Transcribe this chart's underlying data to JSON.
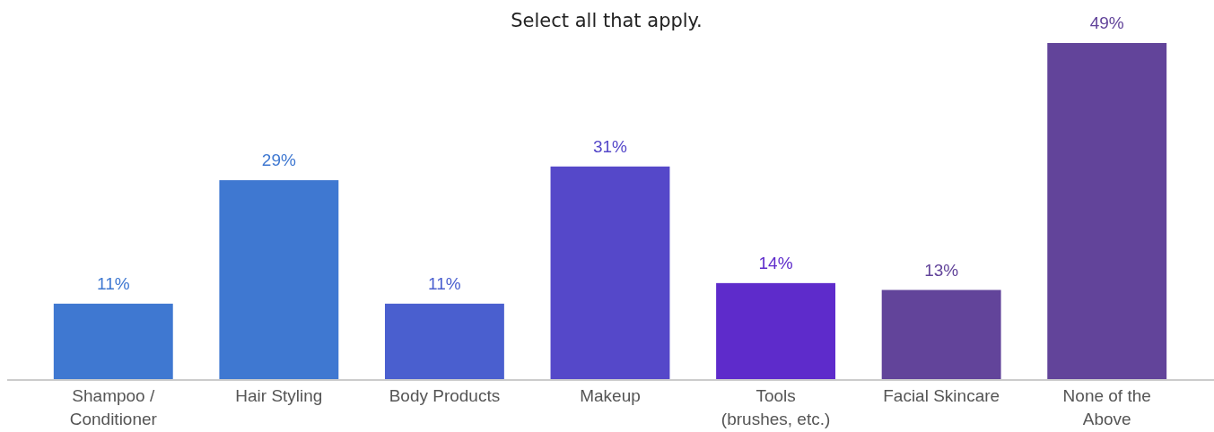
{
  "chart_data": {
    "type": "bar",
    "title": "Select all that apply.",
    "categories": [
      "Shampoo / Conditioner",
      "Hair Styling",
      "Body Products",
      "Makeup",
      "Tools (brushes, etc.)",
      "Facial Skincare",
      "None of the Above"
    ],
    "values": [
      11,
      29,
      11,
      31,
      14,
      13,
      49
    ],
    "colors": [
      "#3f78d1",
      "#3f78d1",
      "#4a5fcf",
      "#5548c9",
      "#5e2bcb",
      "#62449a",
      "#62449a"
    ],
    "data_labels": true,
    "value_labels": [
      "11%",
      "29%",
      "11%",
      "31%",
      "14%",
      "13%",
      "49%"
    ]
  }
}
